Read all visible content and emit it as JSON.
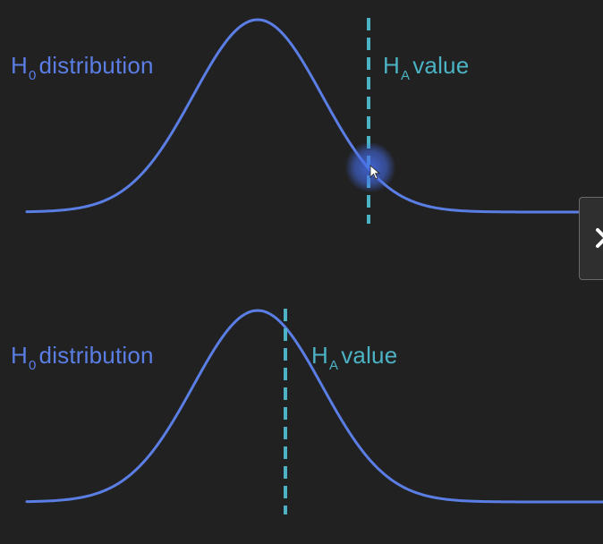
{
  "panels": [
    {
      "h0_label": {
        "letter": "H",
        "sub": "0",
        "rest": "distribution"
      },
      "ha_label": {
        "letter": "H",
        "sub": "A",
        "rest": "value"
      }
    },
    {
      "h0_label": {
        "letter": "H",
        "sub": "0",
        "rest": "distribution"
      },
      "ha_label": {
        "letter": "H",
        "sub": "A",
        "rest": "value"
      }
    }
  ],
  "colors": {
    "background": "#212121",
    "distribution": "#5b7ee5",
    "alternative_line": "#4bb3c4",
    "panel_tab": "#2f2f2f"
  },
  "icons": {
    "side_tab": "close-x-icon",
    "cursor": "mouse-pointer-icon"
  }
}
